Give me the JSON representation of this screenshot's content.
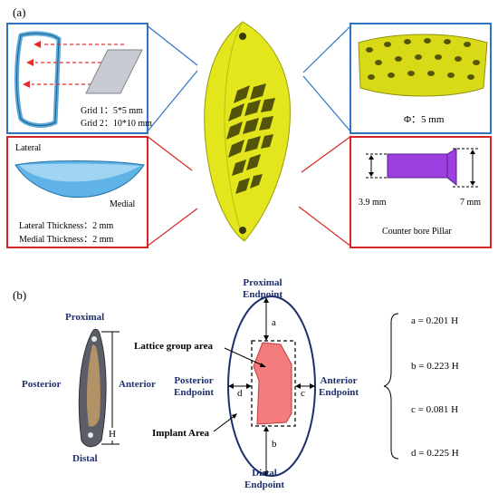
{
  "panel_a": {
    "label": "(a)",
    "grid_box": {
      "line1": "Grid 1：5*5 mm",
      "line2": "Grid 2：10*10 mm"
    },
    "thickness_box": {
      "lateral": "Lateral",
      "medial": "Medial",
      "line1": "Lateral Thickness：2 mm",
      "line2": "Medial Thickness：2 mm"
    },
    "hole_box": {
      "caption": "Φ：5 mm"
    },
    "pillar_box": {
      "left_dim": "3.9 mm",
      "right_dim": "7 mm",
      "caption": "Counter bore Pillar"
    }
  },
  "panel_b": {
    "label": "(b)",
    "photo": {
      "proximal": "Proximal",
      "posterior": "Posterior",
      "anterior": "Anterior",
      "distal": "Distal",
      "height": "H"
    },
    "diagram": {
      "proximal_endpoint": [
        "Proximal",
        "Endpoint"
      ],
      "posterior_endpoint": [
        "Posterior",
        "Endpoint"
      ],
      "anterior_endpoint": [
        "Anterior",
        "Endpoint"
      ],
      "distal_endpoint": [
        "Distal",
        "Endpoint"
      ],
      "lattice_label": "Lattice group area",
      "implant_label": "Implant Area",
      "a": "a",
      "b": "b",
      "c": "c",
      "d": "d"
    },
    "equations": [
      "a = 0.201 H",
      "b = 0.223 H",
      "c = 0.081 H",
      "d = 0.225 H"
    ]
  },
  "colors": {
    "blue": "#2f74c0",
    "red": "#d62728",
    "implant_yellow": "#e3e61c",
    "lattice_pink": "#f47c7c",
    "navy": "#1f2f6b",
    "pillar_purple": "#9b3fe0"
  }
}
